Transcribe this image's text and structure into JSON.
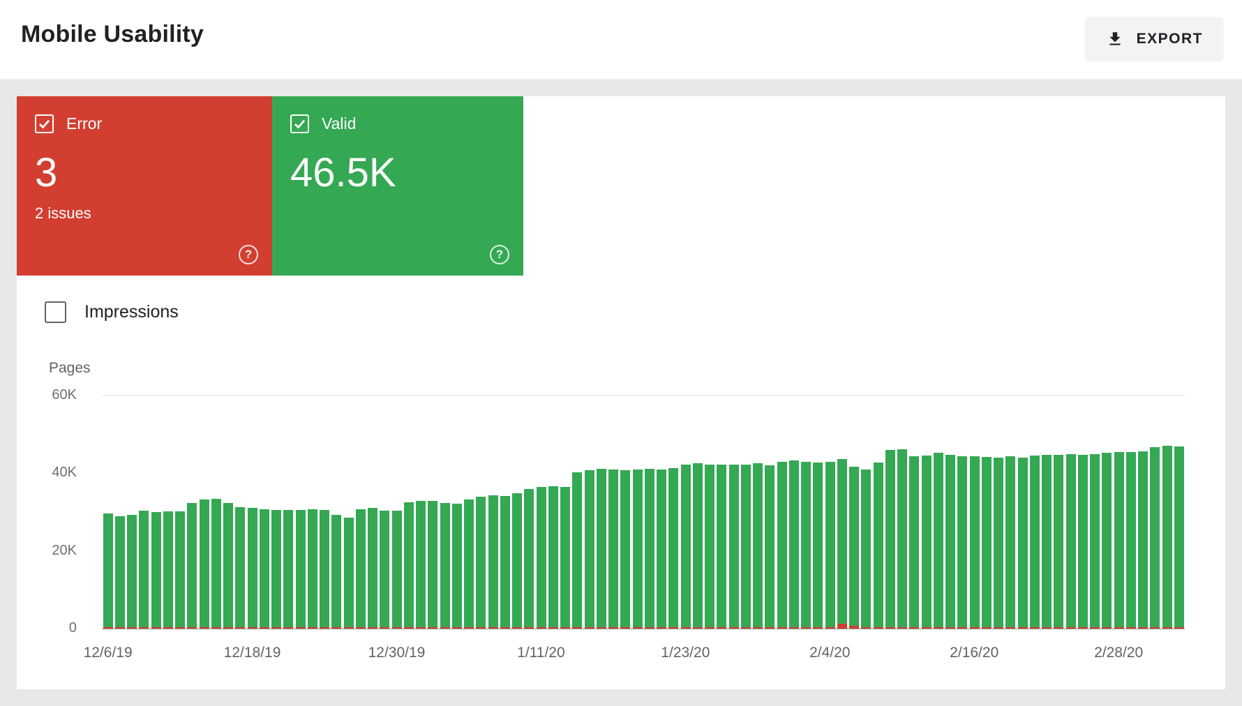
{
  "header": {
    "title": "Mobile Usability",
    "export_label": "EXPORT"
  },
  "tiles": {
    "error": {
      "label": "Error",
      "value": "3",
      "subtext": "2 issues",
      "color": "#d23f31",
      "checked": true
    },
    "valid": {
      "label": "Valid",
      "value": "46.5K",
      "color": "#34a853",
      "checked": true
    }
  },
  "controls": {
    "impressions_label": "Impressions",
    "impressions_checked": false
  },
  "chart_data": {
    "type": "bar",
    "title": "",
    "xlabel": "",
    "ylabel": "Pages",
    "ylim": [
      0,
      60000
    ],
    "y_ticks": [
      "60K",
      "40K",
      "20K",
      "0"
    ],
    "grid": "top gridline and baseline only",
    "legend_position": "none",
    "x_ticks": [
      {
        "index": 0,
        "label": "12/6/19"
      },
      {
        "index": 12,
        "label": "12/18/19"
      },
      {
        "index": 24,
        "label": "12/30/19"
      },
      {
        "index": 36,
        "label": "1/11/20"
      },
      {
        "index": 48,
        "label": "1/23/20"
      },
      {
        "index": 60,
        "label": "2/4/20"
      },
      {
        "index": 72,
        "label": "2/16/20"
      },
      {
        "index": 84,
        "label": "2/28/20"
      }
    ],
    "series": [
      {
        "name": "Valid",
        "color": "#34a853",
        "values": [
          29300,
          28600,
          28800,
          29900,
          29600,
          29700,
          29800,
          31900,
          32900,
          33100,
          31900,
          30900,
          30600,
          30300,
          30100,
          30200,
          30100,
          30300,
          30100,
          28900,
          28200,
          30400,
          30600,
          29900,
          30000,
          32100,
          32400,
          32500,
          31900,
          31800,
          32900,
          33600,
          33900,
          33800,
          34400,
          35600,
          36100,
          36300,
          36100,
          39800,
          40400,
          40800,
          40600,
          40300,
          40500,
          40800,
          40600,
          41000,
          41800,
          42100,
          41900,
          41800,
          41900,
          41900,
          42100,
          41600,
          42600,
          42900,
          42600,
          42400,
          42600,
          42400,
          40900,
          40600,
          42400,
          45600,
          45800,
          43900,
          44100,
          44900,
          44400,
          43900,
          43900,
          43800,
          43600,
          43900,
          43600,
          44100,
          44400,
          44300,
          44600,
          44400,
          44600,
          44900,
          45100,
          45000,
          45300,
          46400,
          46600,
          46500
        ]
      },
      {
        "name": "Error",
        "color": "#d23f31",
        "values": [
          400,
          400,
          400,
          400,
          400,
          400,
          400,
          400,
          400,
          400,
          400,
          400,
          400,
          400,
          400,
          400,
          400,
          400,
          400,
          400,
          400,
          400,
          400,
          400,
          400,
          400,
          400,
          400,
          400,
          400,
          400,
          400,
          400,
          400,
          400,
          400,
          400,
          400,
          400,
          400,
          400,
          400,
          400,
          400,
          400,
          400,
          400,
          400,
          400,
          400,
          400,
          400,
          400,
          400,
          400,
          400,
          400,
          400,
          400,
          400,
          400,
          1300,
          800,
          400,
          400,
          400,
          400,
          400,
          400,
          400,
          400,
          400,
          400,
          400,
          400,
          400,
          400,
          400,
          400,
          400,
          400,
          400,
          400,
          400,
          400,
          400,
          400,
          400,
          400,
          400
        ]
      }
    ]
  }
}
